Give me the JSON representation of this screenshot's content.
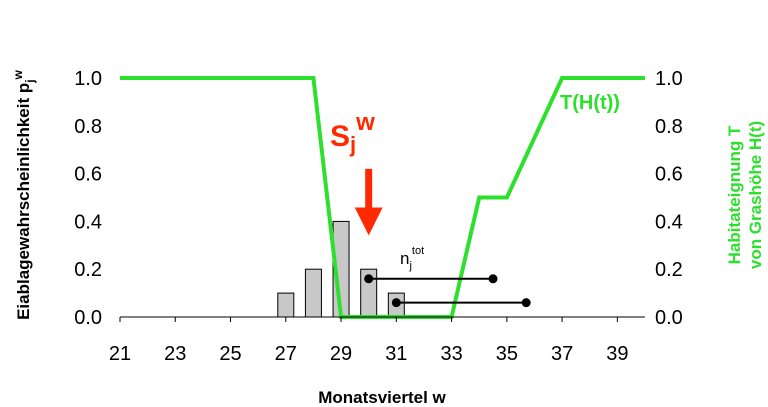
{
  "chart_data": {
    "type": "bar",
    "xlabel": "Monatsviertel w",
    "ylabel_base": "Eiablagewahrscheinlichkeit p",
    "ylabel_sub": "j",
    "ylabel_sup": "w",
    "y2label_line1": "Habitateignung T",
    "y2label_line2": "von Grashöhe H(t)",
    "xlim": [
      21,
      40
    ],
    "ylim": [
      0,
      1.0
    ],
    "y2lim": [
      0,
      1.0
    ],
    "xticks": [
      "21",
      "23",
      "25",
      "27",
      "29",
      "31",
      "33",
      "35",
      "37",
      "39"
    ],
    "xtick_values": [
      21,
      23,
      25,
      27,
      29,
      31,
      33,
      35,
      37,
      39
    ],
    "yticks": [
      "0.0",
      "0.2",
      "0.4",
      "0.6",
      "0.8",
      "1.0"
    ],
    "ytick_values": [
      0,
      0.2,
      0.4,
      0.6,
      0.8,
      1.0
    ],
    "y2ticks": [
      "0.0",
      "0.2",
      "0.4",
      "0.6",
      "0.8",
      "1.0"
    ],
    "bars": {
      "x": [
        27,
        28,
        29,
        30,
        31
      ],
      "values": [
        0.1,
        0.2,
        0.4,
        0.2,
        0.1
      ],
      "color": "#c8c8c8"
    },
    "habitat_curve": {
      "name": "T(H(t))",
      "color": "#2ee02e",
      "x": [
        21,
        28,
        29,
        33,
        34,
        35,
        37,
        40
      ],
      "y": [
        1.0,
        1.0,
        0.0,
        0.0,
        0.5,
        0.5,
        1.0,
        1.0
      ]
    },
    "intervals": [
      {
        "x": [
          30,
          34.5
        ],
        "y": 0.16
      },
      {
        "x": [
          31,
          35.7
        ],
        "y": 0.06
      }
    ],
    "annotations": {
      "sj_base": "S",
      "sj_sub": "j",
      "sj_sup": "w",
      "sj_color": "#ff2a00",
      "sj_arrow_x": 30,
      "sj_arrow_from": 0.62,
      "sj_arrow_to": 0.35,
      "ntot_base": "n",
      "ntot_sub": "j",
      "ntot_sup": "tot"
    }
  }
}
